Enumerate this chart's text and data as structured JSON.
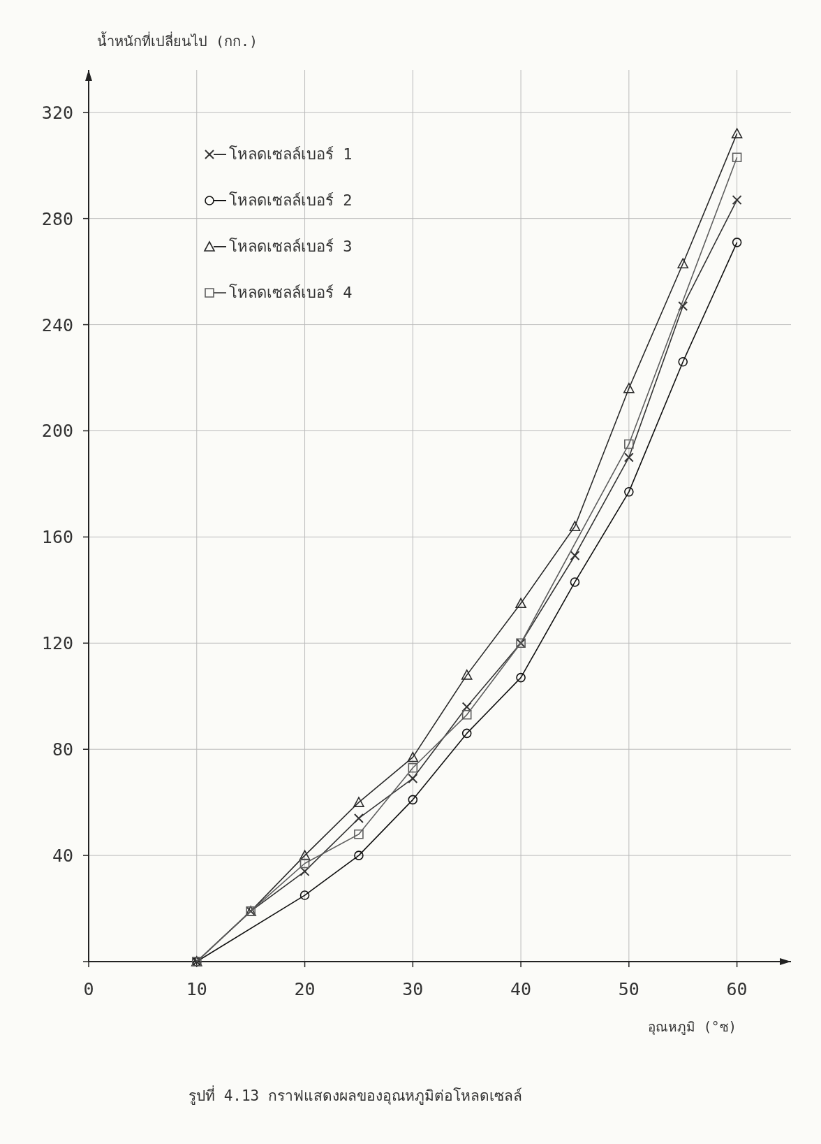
{
  "chart_data": {
    "type": "line",
    "xlabel": "อุณหภูมิ (°ซ)",
    "ylabel": "น้ำหนักที่เปลี่ยนไป (กก.)",
    "annotations": [
      "รูปที่ 4.13  กราฟแสดงผลของอุณหภูมิต่อโหลดเซลล์"
    ],
    "x": [
      10,
      15,
      20,
      25,
      30,
      35,
      40,
      45,
      50,
      55,
      60
    ],
    "series": [
      {
        "name": "โหลดเซลล์เบอร์ 1",
        "color": "#333333",
        "marker": "cross",
        "values": [
          0,
          19,
          34,
          54,
          69,
          96,
          120,
          153,
          190,
          247,
          287
        ]
      },
      {
        "name": "โหลดเซลล์เบอร์ 2",
        "color": "#111111",
        "marker": "circle",
        "x": [
          10,
          20,
          25,
          30,
          35,
          40,
          45,
          50,
          55,
          60
        ],
        "values": [
          0,
          25,
          40,
          61,
          86,
          107,
          143,
          177,
          226,
          271
        ]
      },
      {
        "name": "โหลดเซลล์เบอร์ 3",
        "color": "#2a2a2a",
        "marker": "triangle",
        "values": [
          0,
          19,
          40,
          60,
          77,
          108,
          135,
          164,
          216,
          263,
          312
        ]
      },
      {
        "name": "โหลดเซลล์เบอร์ 4",
        "color": "#5e5e5e",
        "marker": "square",
        "x": [
          10,
          15,
          20,
          25,
          30,
          35,
          40,
          50,
          60
        ],
        "values": [
          0,
          19,
          37,
          48,
          73,
          93,
          120,
          195,
          303
        ]
      }
    ],
    "xlim": [
      0,
      65
    ],
    "ylim": [
      0,
      336
    ],
    "xticks": [
      0,
      10,
      20,
      30,
      40,
      50,
      60
    ],
    "yticks": [
      {
        "value": 0,
        "label": null
      },
      40,
      80,
      120,
      160,
      200,
      240,
      280,
      320
    ],
    "grid": true,
    "legend": "top left"
  }
}
